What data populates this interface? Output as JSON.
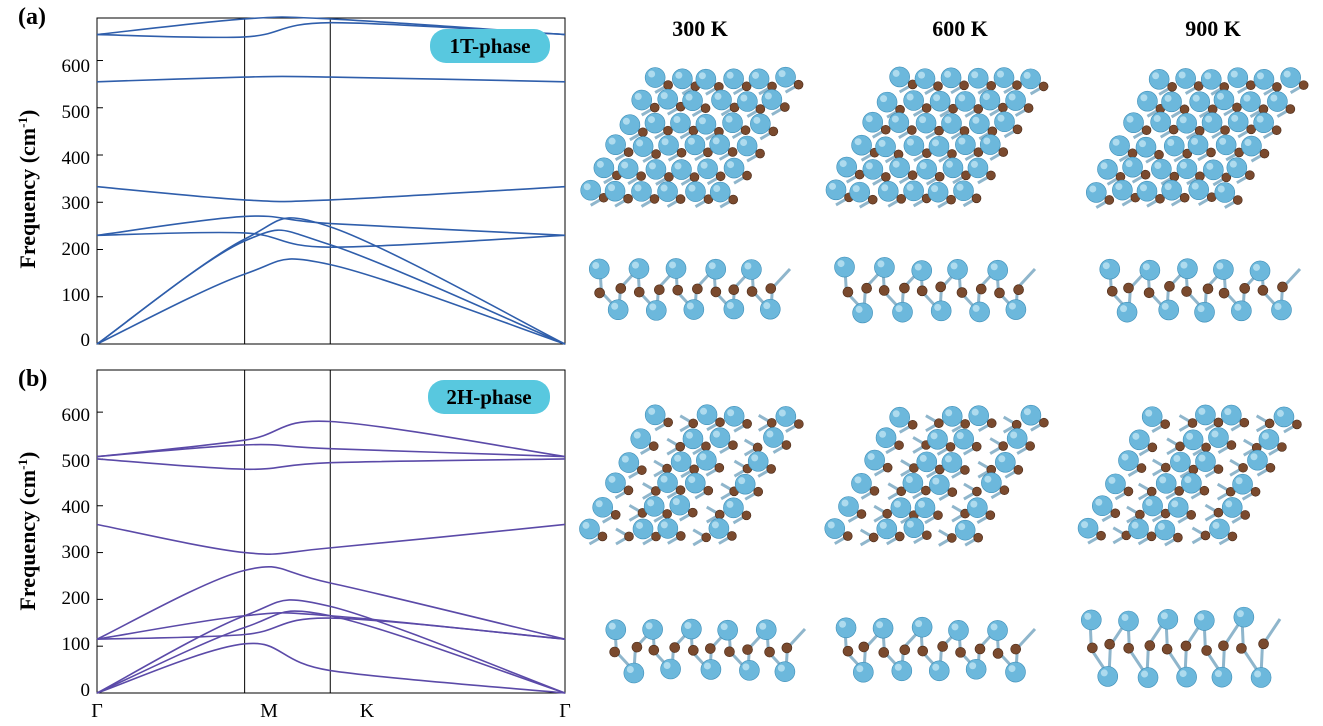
{
  "panels": [
    {
      "id": "a",
      "letter": "(a)",
      "phase_label": "1T-phase",
      "y_axis_label": "Frequency (cm",
      "y_axis_sup": "-1",
      "y_axis_close": ")",
      "y_ticks": [
        "0",
        "100",
        "200",
        "300",
        "400",
        "500",
        "600"
      ],
      "color": "#2f5eab"
    },
    {
      "id": "b",
      "letter": "(b)",
      "phase_label": "2H-phase",
      "y_axis_label": "Frequency (cm",
      "y_axis_sup": "-1",
      "y_axis_close": ")",
      "y_ticks": [
        "0",
        "100",
        "200",
        "300",
        "400",
        "500",
        "600"
      ],
      "color": "#5b4aa8"
    }
  ],
  "x_labels": [
    "Γ",
    "M",
    "K",
    "Γ"
  ],
  "temperatures": [
    "300 K",
    "600 K",
    "900 K"
  ],
  "colors": {
    "atom_light": "#6cb8dc",
    "atom_dark": "#7a4a2e",
    "bond": "#8fb6cc",
    "badge": "#58c8df"
  },
  "chart_data": [
    {
      "type": "line",
      "title": "1T-phase",
      "xlabel": "",
      "ylabel": "Frequency (cm-1)",
      "x_ticks": [
        "Γ",
        "M",
        "K",
        "Γ"
      ],
      "ylim": [
        0,
        690
      ],
      "x": [
        0,
        1,
        1.58,
        3.17
      ],
      "series": [
        {
          "values": [
            0,
            148,
            168,
            0
          ]
        },
        {
          "values": [
            0,
            218,
            210,
            0
          ]
        },
        {
          "values": [
            0,
            222,
            248,
            0
          ]
        },
        {
          "values": [
            230,
            235,
            205,
            230
          ]
        },
        {
          "values": [
            230,
            270,
            255,
            230
          ]
        },
        {
          "values": [
            333,
            305,
            305,
            333
          ]
        },
        {
          "values": [
            555,
            565,
            565,
            555
          ]
        },
        {
          "values": [
            655,
            650,
            680,
            655
          ]
        },
        {
          "values": [
            655,
            688,
            688,
            655
          ]
        }
      ]
    },
    {
      "type": "line",
      "title": "2H-phase",
      "xlabel": "",
      "ylabel": "Frequency (cm-1)",
      "x_ticks": [
        "Γ",
        "M",
        "K",
        "Γ"
      ],
      "ylim": [
        0,
        690
      ],
      "x": [
        0,
        1,
        1.58,
        3.17
      ],
      "series": [
        {
          "values": [
            0,
            105,
            48,
            0
          ]
        },
        {
          "values": [
            0,
            140,
            165,
            0
          ]
        },
        {
          "values": [
            0,
            165,
            185,
            0
          ]
        },
        {
          "values": [
            115,
            125,
            160,
            115
          ]
        },
        {
          "values": [
            115,
            165,
            165,
            115
          ]
        },
        {
          "values": [
            115,
            262,
            235,
            115
          ]
        },
        {
          "values": [
            360,
            300,
            310,
            360
          ]
        },
        {
          "values": [
            500,
            478,
            492,
            500
          ]
        },
        {
          "values": [
            505,
            540,
            580,
            505
          ]
        },
        {
          "values": [
            505,
            530,
            522,
            505
          ]
        }
      ]
    }
  ]
}
